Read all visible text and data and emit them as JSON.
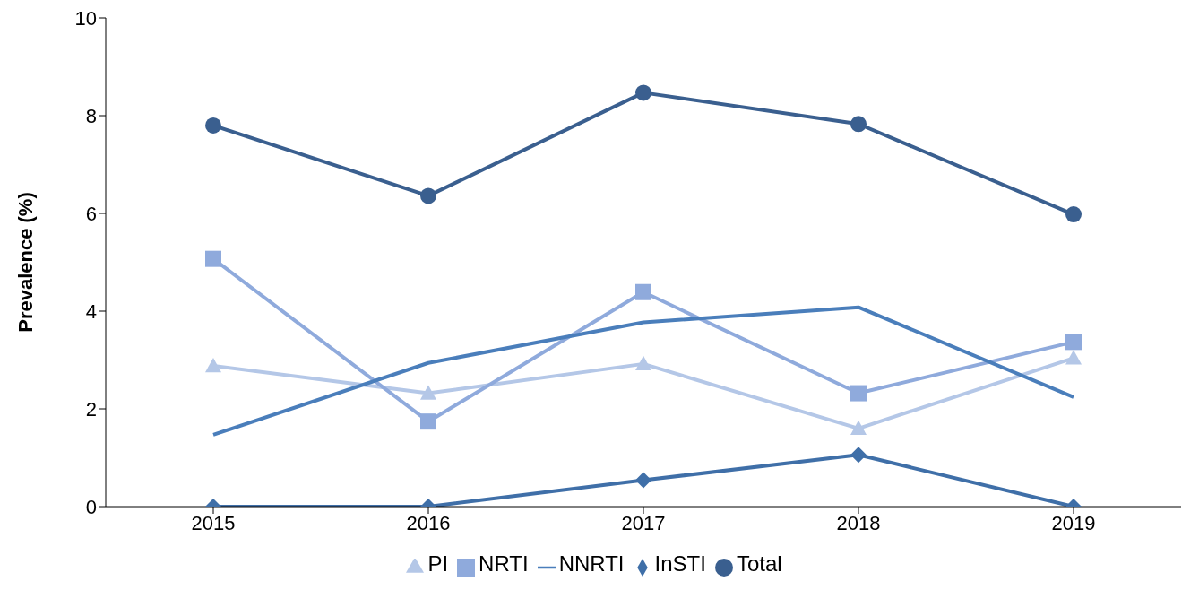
{
  "chart_data": {
    "type": "line",
    "ylabel": "Prevalence (%)",
    "categories": [
      "2015",
      "2016",
      "2017",
      "2018",
      "2019"
    ],
    "series": [
      {
        "name": "PI",
        "color": "#b4c7e7",
        "marker": "triangle",
        "values": [
          2.88,
          2.32,
          2.92,
          1.6,
          3.04
        ]
      },
      {
        "name": "NRTI",
        "color": "#8faadc",
        "marker": "square",
        "values": [
          5.07,
          1.74,
          4.39,
          2.32,
          3.37
        ]
      },
      {
        "name": "NNRTI",
        "color": "#4a7ebb",
        "marker": "none",
        "values": [
          1.47,
          2.94,
          3.77,
          4.08,
          2.24
        ]
      },
      {
        "name": "InSTI",
        "color": "#3f6fa8",
        "marker": "diamond",
        "values": [
          0,
          0,
          0.54,
          1.06,
          0
        ]
      },
      {
        "name": "Total",
        "color": "#3a5f8f",
        "marker": "circle",
        "values": [
          7.8,
          6.36,
          8.47,
          7.83,
          5.98
        ]
      }
    ],
    "ylim": [
      0,
      10
    ],
    "yticks": [
      0,
      2,
      4,
      6,
      8,
      10
    ],
    "grid": false,
    "legend": "bottom",
    "line_style": "solid"
  }
}
